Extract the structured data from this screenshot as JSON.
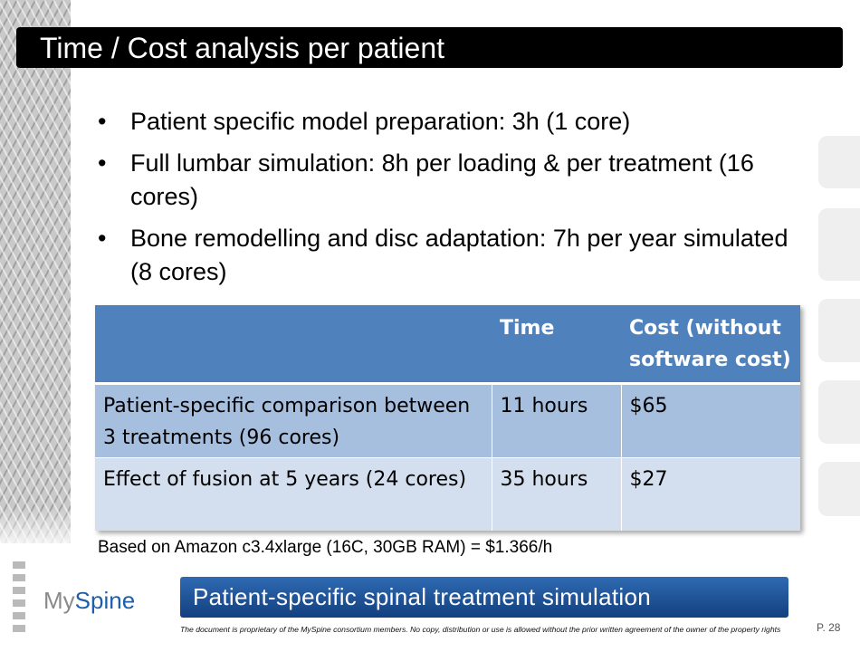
{
  "slide": {
    "title": "Time / Cost analysis per patient",
    "bullet_char": "•",
    "bullets": [
      "Patient specific model preparation: 3h (1 core)",
      "Full lumbar simulation: 8h per loading & per treatment (16 cores)",
      "Bone remodelling and disc adaptation: 7h per year simulated (8 cores)"
    ]
  },
  "table": {
    "headers": [
      "",
      "Time",
      "Cost (without software cost)"
    ],
    "rows": [
      [
        "Patient-specific comparison between 3 treatments (96 cores)",
        "11 hours",
        "$65"
      ],
      [
        "Effect of fusion at 5 years (24 cores)",
        "35 hours",
        "$27"
      ]
    ]
  },
  "footnote": "Based on Amazon c3.4xlarge (16C, 30GB RAM) = $1.366/h",
  "footer": {
    "logo_part1": "My",
    "logo_part2": "Spine",
    "banner": "Patient-specific spinal treatment simulation",
    "disclaimer": "The document is proprietary of the MySpine consortium members. No copy, distribution or use is allowed without the prior written agreement of the owner of the property rights",
    "page": "P. 28"
  },
  "colors": {
    "title_bar": "#000000",
    "table_header": "#4f81bd",
    "table_row_1": "#a7bfde",
    "table_row_2": "#d3dfee",
    "banner": "#1f5fa8"
  }
}
